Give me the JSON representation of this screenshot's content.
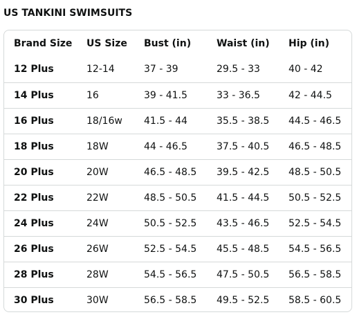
{
  "title": "US TANKINI SWIMSUITS",
  "table": {
    "headers": [
      "Brand Size",
      "US Size",
      "Bust (in)",
      "Waist (in)",
      "Hip (in)"
    ],
    "rows": [
      [
        "12 Plus",
        "12-14",
        "37 - 39",
        "29.5 - 33",
        "40 - 42"
      ],
      [
        "14 Plus",
        "16",
        "39 - 41.5",
        "33 - 36.5",
        "42 - 44.5"
      ],
      [
        "16 Plus",
        "18/16w",
        "41.5 - 44",
        "35.5 - 38.5",
        "44.5 - 46.5"
      ],
      [
        "18 Plus",
        "18W",
        "44 - 46.5",
        "37.5 - 40.5",
        "46.5 - 48.5"
      ],
      [
        "20 Plus",
        "20W",
        "46.5 - 48.5",
        "39.5 - 42.5",
        "48.5 - 50.5"
      ],
      [
        "22 Plus",
        "22W",
        "48.5 - 50.5",
        "41.5 - 44.5",
        "50.5 - 52.5"
      ],
      [
        "24 Plus",
        "24W",
        "50.5 - 52.5",
        "43.5 - 46.5",
        "52.5 - 54.5"
      ],
      [
        "26 Plus",
        "26W",
        "52.5 - 54.5",
        "45.5 - 48.5",
        "54.5 - 56.5"
      ],
      [
        "28 Plus",
        "28W",
        "54.5 - 56.5",
        "47.5 - 50.5",
        "56.5 - 58.5"
      ],
      [
        "30 Plus",
        "30W",
        "56.5 - 58.5",
        "49.5 - 52.5",
        "58.5 - 60.5"
      ]
    ]
  },
  "colors": {
    "text": "#0f1111",
    "border": "#d5d9d9",
    "background": "#ffffff"
  }
}
